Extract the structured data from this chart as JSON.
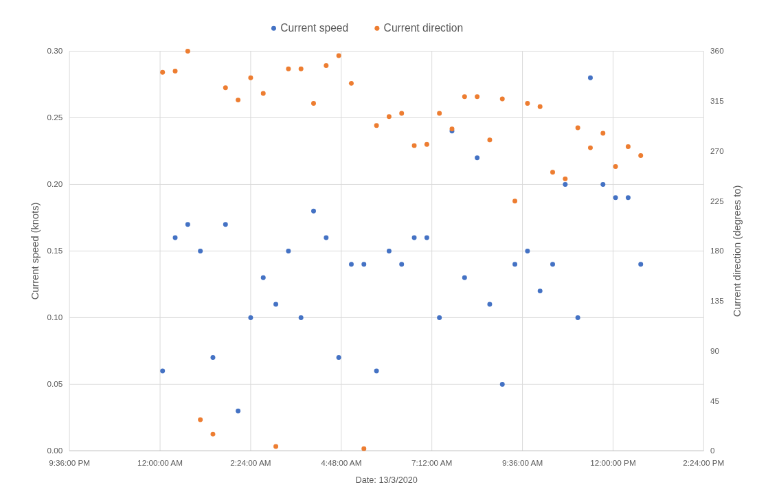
{
  "chart_data": {
    "type": "scatter",
    "xlabel": "Date: 13/3/2020",
    "ylabel": "Current speed (knots)",
    "y2label": "Current direction (degrees to)",
    "x": [
      "2020-03-13T00:04",
      "2020-03-13T00:24",
      "2020-03-13T00:44",
      "2020-03-13T01:04",
      "2020-03-13T01:24",
      "2020-03-13T01:44",
      "2020-03-13T02:04",
      "2020-03-13T02:24",
      "2020-03-13T02:44",
      "2020-03-13T03:04",
      "2020-03-13T03:24",
      "2020-03-13T03:44",
      "2020-03-13T04:04",
      "2020-03-13T04:24",
      "2020-03-13T04:44",
      "2020-03-13T05:04",
      "2020-03-13T05:24",
      "2020-03-13T05:44",
      "2020-03-13T06:04",
      "2020-03-13T06:24",
      "2020-03-13T06:44",
      "2020-03-13T07:04",
      "2020-03-13T07:24",
      "2020-03-13T07:44",
      "2020-03-13T08:04",
      "2020-03-13T08:24",
      "2020-03-13T08:44",
      "2020-03-13T09:04",
      "2020-03-13T09:24",
      "2020-03-13T09:44",
      "2020-03-13T10:04",
      "2020-03-13T10:24",
      "2020-03-13T10:44",
      "2020-03-13T11:04",
      "2020-03-13T11:24",
      "2020-03-13T11:44",
      "2020-03-13T12:04",
      "2020-03-13T12:24",
      "2020-03-13T12:44"
    ],
    "series": [
      {
        "name": "Current speed",
        "color": "#4472c4",
        "values": [
          0.06,
          0.16,
          0.17,
          0.15,
          0.07,
          0.17,
          0.03,
          0.1,
          0.13,
          0.11,
          0.15,
          0.1,
          0.18,
          0.16,
          0.07,
          0.14,
          0.14,
          0.06,
          0.15,
          0.14,
          0.16,
          0.16,
          0.1,
          0.24,
          0.13,
          0.22,
          0.11,
          0.05,
          0.14,
          0.15,
          0.12,
          0.14,
          0.2,
          0.1,
          0.28,
          0.2,
          0.19,
          0.19,
          0.14
        ]
      },
      {
        "name": "Current direction",
        "color": "#ed7d31",
        "axis": "y2",
        "values": [
          341,
          342,
          360,
          28,
          15,
          327,
          316,
          336,
          322,
          4,
          344,
          344,
          313,
          347,
          356,
          331,
          2,
          293,
          301,
          304,
          275,
          276,
          304,
          290,
          319,
          319,
          280,
          317,
          225,
          313,
          310,
          251,
          245,
          291,
          273,
          286,
          256,
          274,
          266
        ]
      }
    ],
    "xlim": [
      "2020-03-12T21:36",
      "2020-03-13T14:24"
    ],
    "xticks": [
      {
        "value": "2020-03-12T21:36",
        "label": "9:36:00 PM"
      },
      {
        "value": "2020-03-13T00:00",
        "label": "12:00:00 AM"
      },
      {
        "value": "2020-03-13T02:24",
        "label": "2:24:00 AM"
      },
      {
        "value": "2020-03-13T04:48",
        "label": "4:48:00 AM"
      },
      {
        "value": "2020-03-13T07:12",
        "label": "7:12:00 AM"
      },
      {
        "value": "2020-03-13T09:36",
        "label": "9:36:00 AM"
      },
      {
        "value": "2020-03-13T12:00",
        "label": "12:00:00 PM"
      },
      {
        "value": "2020-03-13T14:24",
        "label": "2:24:00 PM"
      }
    ],
    "ylim": [
      0,
      0.3
    ],
    "yticks": [
      {
        "value": 0,
        "label": "0.00"
      },
      {
        "value": 0.05,
        "label": "0.05"
      },
      {
        "value": 0.1,
        "label": "0.10"
      },
      {
        "value": 0.15,
        "label": "0.15"
      },
      {
        "value": 0.2,
        "label": "0.20"
      },
      {
        "value": 0.25,
        "label": "0.25"
      },
      {
        "value": 0.3,
        "label": "0.30"
      }
    ],
    "y2lim": [
      0,
      360
    ],
    "y2ticks": [
      0,
      45,
      90,
      135,
      180,
      225,
      270,
      315,
      360
    ],
    "grid": true,
    "legend": "top",
    "marker": "circle"
  }
}
